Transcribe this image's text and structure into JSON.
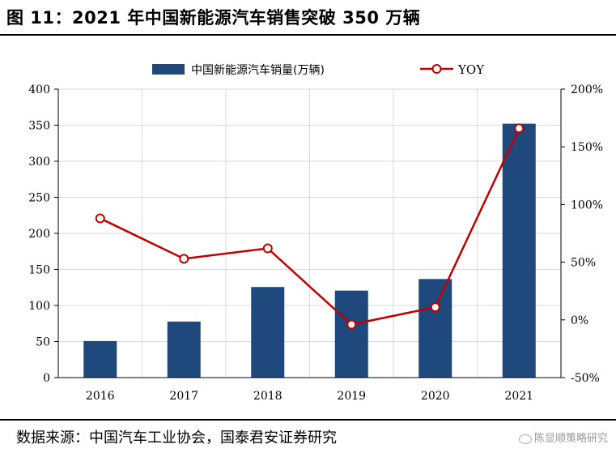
{
  "title": "图 11：2021 年中国新能源汽车销售突破 350 万辆",
  "source": "数据来源：中国汽车工业协会，国泰君安证券研究",
  "watermark": "陈显顺策略研究",
  "colors": {
    "bar": "#1f497d",
    "line": "#c00000",
    "grid": "#d9d9d9"
  },
  "chart_data": {
    "type": "bar",
    "categories": [
      "2016",
      "2017",
      "2018",
      "2019",
      "2020",
      "2021"
    ],
    "series": [
      {
        "name": "中国新能源汽车销量(万辆)",
        "type": "bar",
        "axis": "left",
        "values": [
          50.7,
          77.7,
          125.6,
          120.6,
          136.7,
          352.1
        ]
      },
      {
        "name": "YOY",
        "type": "line",
        "axis": "right",
        "unit": "%",
        "values": [
          88,
          53,
          62,
          -4,
          11,
          166
        ]
      }
    ],
    "ylim_left": [
      0,
      400
    ],
    "yticks_left": [
      "0",
      "50",
      "100",
      "150",
      "200",
      "250",
      "300",
      "350",
      "400"
    ],
    "ylim_right": [
      -50,
      200
    ],
    "yticks_right": [
      "-50%",
      "0%",
      "50%",
      "100%",
      "150%",
      "200%"
    ],
    "grid": true,
    "legend_position": "top"
  }
}
